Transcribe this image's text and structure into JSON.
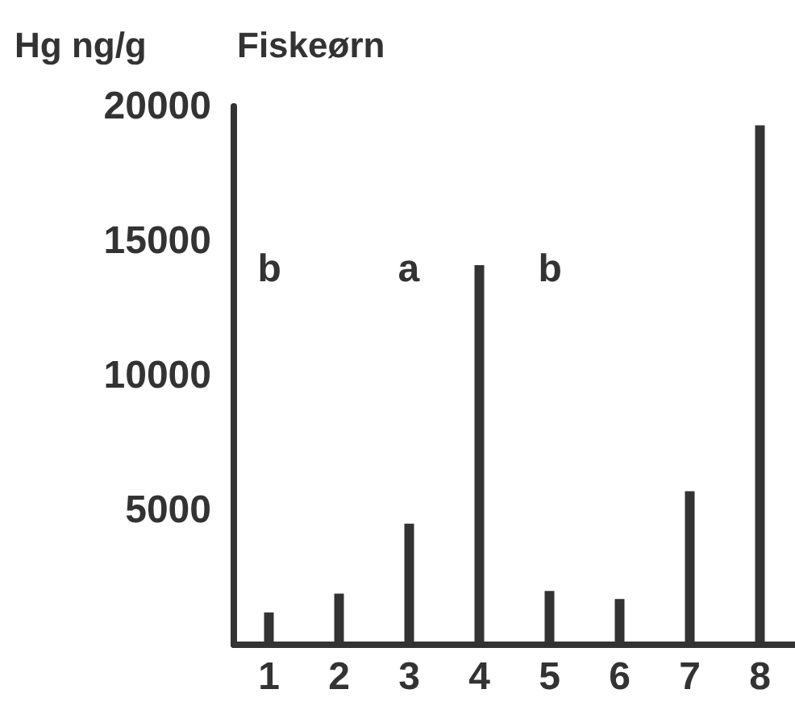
{
  "chart_data": {
    "type": "bar",
    "title": "Fiskeørn",
    "ylabel": "Hg ng/g",
    "categories": [
      "1",
      "2",
      "3",
      "4",
      "5",
      "6",
      "7",
      "8"
    ],
    "values": [
      1200,
      1900,
      4500,
      14100,
      2000,
      1700,
      5700,
      19300
    ],
    "color": "#333333",
    "ylim": [
      0,
      20000
    ],
    "yticks": [
      5000,
      10000,
      15000,
      20000
    ],
    "grid": false,
    "annotations": [
      "b",
      "a",
      "b"
    ]
  }
}
